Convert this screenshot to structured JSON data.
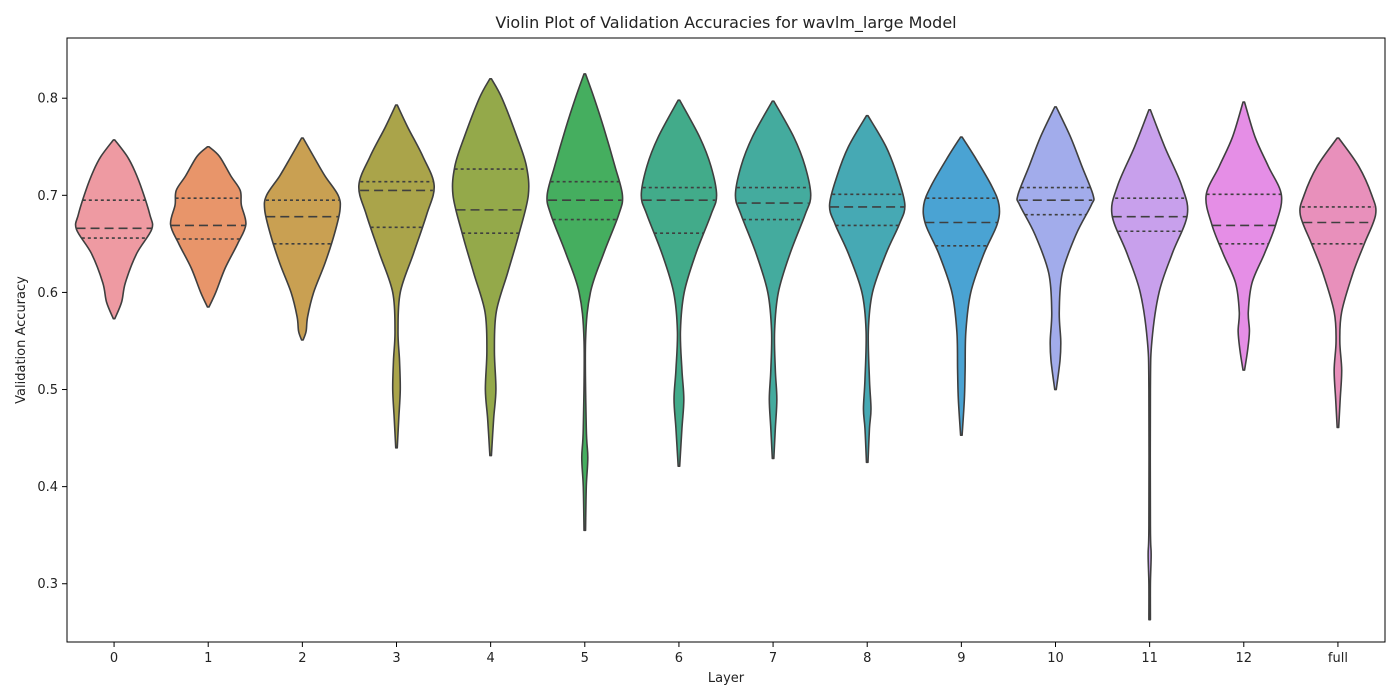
{
  "chart_data": {
    "type": "violin",
    "title": "Violin Plot of Validation Accuracies for wavlm_large Model",
    "xlabel": "Layer",
    "ylabel": "Validation Accuracy",
    "ylim": [
      0.24,
      0.862
    ],
    "yticks": [
      0.3,
      0.4,
      0.5,
      0.6,
      0.7,
      0.8
    ],
    "grid": false,
    "legend": "none",
    "inner": "quartile",
    "categories": [
      "0",
      "1",
      "2",
      "3",
      "4",
      "5",
      "6",
      "7",
      "8",
      "9",
      "10",
      "11",
      "12",
      "full"
    ],
    "colors": [
      "#ee9aa2",
      "#e8956a",
      "#c9a052",
      "#aaa44a",
      "#94a94a",
      "#45ae5f",
      "#42ab8a",
      "#44ab9e",
      "#46a9b4",
      "#4aa3d3",
      "#a2aceb",
      "#c8a0ec",
      "#e58ee6",
      "#e890bb"
    ],
    "violins": [
      {
        "min": 0.573,
        "q1": 0.656,
        "median": 0.666,
        "q3": 0.695,
        "max": 0.757,
        "profile": [
          [
            0.573,
            0.02
          ],
          [
            0.59,
            0.2
          ],
          [
            0.61,
            0.3
          ],
          [
            0.64,
            0.6
          ],
          [
            0.665,
            1.0
          ],
          [
            0.68,
            0.95
          ],
          [
            0.705,
            0.75
          ],
          [
            0.725,
            0.55
          ],
          [
            0.74,
            0.35
          ],
          [
            0.757,
            0.02
          ]
        ]
      },
      {
        "min": 0.585,
        "q1": 0.655,
        "median": 0.669,
        "q3": 0.697,
        "max": 0.75,
        "profile": [
          [
            0.585,
            0.02
          ],
          [
            0.6,
            0.2
          ],
          [
            0.625,
            0.45
          ],
          [
            0.65,
            0.78
          ],
          [
            0.67,
            1.0
          ],
          [
            0.69,
            0.88
          ],
          [
            0.705,
            0.85
          ],
          [
            0.72,
            0.6
          ],
          [
            0.74,
            0.3
          ],
          [
            0.75,
            0.02
          ]
        ]
      },
      {
        "min": 0.551,
        "q1": 0.65,
        "median": 0.678,
        "q3": 0.695,
        "max": 0.759,
        "profile": [
          [
            0.551,
            0.02
          ],
          [
            0.56,
            0.1
          ],
          [
            0.575,
            0.14
          ],
          [
            0.6,
            0.3
          ],
          [
            0.63,
            0.6
          ],
          [
            0.66,
            0.85
          ],
          [
            0.685,
            1.0
          ],
          [
            0.7,
            0.95
          ],
          [
            0.72,
            0.6
          ],
          [
            0.74,
            0.3
          ],
          [
            0.759,
            0.02
          ]
        ]
      },
      {
        "min": 0.44,
        "q1": 0.667,
        "median": 0.705,
        "q3": 0.714,
        "max": 0.793,
        "profile": [
          [
            0.44,
            0.02
          ],
          [
            0.47,
            0.06
          ],
          [
            0.5,
            0.1
          ],
          [
            0.53,
            0.08
          ],
          [
            0.56,
            0.04
          ],
          [
            0.6,
            0.1
          ],
          [
            0.64,
            0.45
          ],
          [
            0.68,
            0.8
          ],
          [
            0.71,
            1.0
          ],
          [
            0.74,
            0.7
          ],
          [
            0.77,
            0.3
          ],
          [
            0.793,
            0.02
          ]
        ]
      },
      {
        "min": 0.432,
        "q1": 0.661,
        "median": 0.685,
        "q3": 0.727,
        "max": 0.82,
        "profile": [
          [
            0.432,
            0.02
          ],
          [
            0.47,
            0.08
          ],
          [
            0.5,
            0.14
          ],
          [
            0.54,
            0.1
          ],
          [
            0.58,
            0.15
          ],
          [
            0.62,
            0.45
          ],
          [
            0.66,
            0.75
          ],
          [
            0.7,
            1.0
          ],
          [
            0.73,
            0.95
          ],
          [
            0.76,
            0.7
          ],
          [
            0.8,
            0.3
          ],
          [
            0.82,
            0.02
          ]
        ]
      },
      {
        "min": 0.355,
        "q1": 0.675,
        "median": 0.695,
        "q3": 0.714,
        "max": 0.825,
        "profile": [
          [
            0.355,
            0.02
          ],
          [
            0.4,
            0.04
          ],
          [
            0.43,
            0.08
          ],
          [
            0.46,
            0.04
          ],
          [
            0.55,
            0.02
          ],
          [
            0.6,
            0.15
          ],
          [
            0.64,
            0.5
          ],
          [
            0.68,
            0.9
          ],
          [
            0.7,
            1.0
          ],
          [
            0.73,
            0.8
          ],
          [
            0.77,
            0.5
          ],
          [
            0.8,
            0.25
          ],
          [
            0.825,
            0.02
          ]
        ]
      },
      {
        "min": 0.421,
        "q1": 0.661,
        "median": 0.695,
        "q3": 0.708,
        "max": 0.798,
        "profile": [
          [
            0.421,
            0.02
          ],
          [
            0.46,
            0.08
          ],
          [
            0.49,
            0.13
          ],
          [
            0.52,
            0.08
          ],
          [
            0.56,
            0.04
          ],
          [
            0.6,
            0.14
          ],
          [
            0.64,
            0.45
          ],
          [
            0.68,
            0.85
          ],
          [
            0.7,
            1.0
          ],
          [
            0.73,
            0.85
          ],
          [
            0.76,
            0.55
          ],
          [
            0.798,
            0.02
          ]
        ]
      },
      {
        "min": 0.429,
        "q1": 0.675,
        "median": 0.692,
        "q3": 0.708,
        "max": 0.797,
        "profile": [
          [
            0.429,
            0.02
          ],
          [
            0.46,
            0.06
          ],
          [
            0.49,
            0.1
          ],
          [
            0.52,
            0.06
          ],
          [
            0.56,
            0.04
          ],
          [
            0.6,
            0.14
          ],
          [
            0.64,
            0.45
          ],
          [
            0.68,
            0.85
          ],
          [
            0.7,
            1.0
          ],
          [
            0.73,
            0.85
          ],
          [
            0.76,
            0.55
          ],
          [
            0.797,
            0.02
          ]
        ]
      },
      {
        "min": 0.425,
        "q1": 0.669,
        "median": 0.688,
        "q3": 0.701,
        "max": 0.782,
        "profile": [
          [
            0.425,
            0.02
          ],
          [
            0.46,
            0.06
          ],
          [
            0.48,
            0.1
          ],
          [
            0.51,
            0.06
          ],
          [
            0.56,
            0.03
          ],
          [
            0.6,
            0.14
          ],
          [
            0.64,
            0.5
          ],
          [
            0.67,
            0.85
          ],
          [
            0.69,
            1.0
          ],
          [
            0.72,
            0.8
          ],
          [
            0.75,
            0.5
          ],
          [
            0.782,
            0.02
          ]
        ]
      },
      {
        "min": 0.453,
        "q1": 0.648,
        "median": 0.672,
        "q3": 0.697,
        "max": 0.76,
        "profile": [
          [
            0.453,
            0.02
          ],
          [
            0.49,
            0.08
          ],
          [
            0.52,
            0.1
          ],
          [
            0.56,
            0.12
          ],
          [
            0.6,
            0.25
          ],
          [
            0.64,
            0.6
          ],
          [
            0.67,
            0.95
          ],
          [
            0.69,
            1.0
          ],
          [
            0.71,
            0.8
          ],
          [
            0.74,
            0.35
          ],
          [
            0.76,
            0.02
          ]
        ]
      },
      {
        "min": 0.5,
        "q1": 0.68,
        "median": 0.695,
        "q3": 0.708,
        "max": 0.791,
        "profile": [
          [
            0.5,
            0.02
          ],
          [
            0.53,
            0.12
          ],
          [
            0.55,
            0.14
          ],
          [
            0.58,
            0.1
          ],
          [
            0.62,
            0.18
          ],
          [
            0.66,
            0.55
          ],
          [
            0.69,
            0.95
          ],
          [
            0.7,
            1.0
          ],
          [
            0.73,
            0.7
          ],
          [
            0.76,
            0.4
          ],
          [
            0.791,
            0.02
          ]
        ]
      },
      {
        "min": 0.263,
        "q1": 0.663,
        "median": 0.678,
        "q3": 0.697,
        "max": 0.788,
        "profile": [
          [
            0.263,
            0.02
          ],
          [
            0.3,
            0.02
          ],
          [
            0.33,
            0.04
          ],
          [
            0.36,
            0.02
          ],
          [
            0.5,
            0.02
          ],
          [
            0.55,
            0.06
          ],
          [
            0.6,
            0.25
          ],
          [
            0.64,
            0.6
          ],
          [
            0.68,
            1.0
          ],
          [
            0.71,
            0.85
          ],
          [
            0.75,
            0.4
          ],
          [
            0.788,
            0.02
          ]
        ]
      },
      {
        "min": 0.52,
        "q1": 0.65,
        "median": 0.669,
        "q3": 0.701,
        "max": 0.796,
        "profile": [
          [
            0.52,
            0.02
          ],
          [
            0.54,
            0.1
          ],
          [
            0.56,
            0.15
          ],
          [
            0.58,
            0.12
          ],
          [
            0.61,
            0.22
          ],
          [
            0.64,
            0.55
          ],
          [
            0.67,
            0.85
          ],
          [
            0.7,
            1.0
          ],
          [
            0.73,
            0.65
          ],
          [
            0.76,
            0.3
          ],
          [
            0.796,
            0.02
          ]
        ]
      },
      {
        "min": 0.461,
        "q1": 0.65,
        "median": 0.672,
        "q3": 0.688,
        "max": 0.759,
        "profile": [
          [
            0.461,
            0.02
          ],
          [
            0.49,
            0.06
          ],
          [
            0.52,
            0.1
          ],
          [
            0.55,
            0.05
          ],
          [
            0.58,
            0.1
          ],
          [
            0.62,
            0.4
          ],
          [
            0.65,
            0.7
          ],
          [
            0.68,
            1.0
          ],
          [
            0.7,
            0.9
          ],
          [
            0.73,
            0.55
          ],
          [
            0.759,
            0.02
          ]
        ]
      }
    ]
  }
}
